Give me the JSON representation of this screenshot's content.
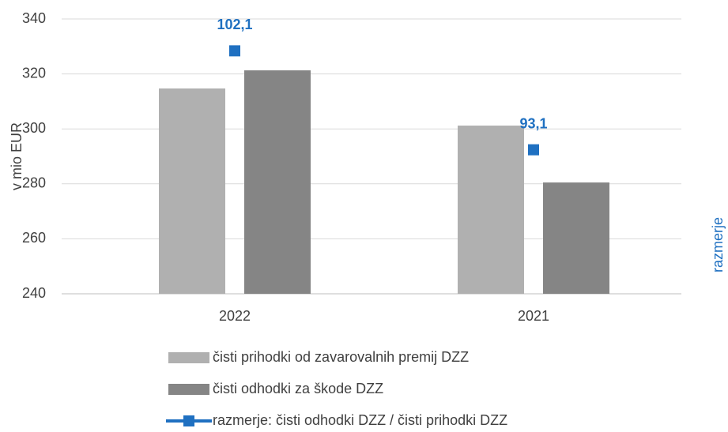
{
  "chart_data": {
    "type": "bar",
    "categories": [
      "2022",
      "2021"
    ],
    "series": [
      {
        "name": "čisti prihodki od zavarovalnih premij DZZ",
        "color": "#b0b0b0",
        "values": [
          314.7,
          301.2
        ]
      },
      {
        "name": "čisti odhodki za škode DZZ",
        "color": "#858585",
        "values": [
          321.3,
          280.5
        ]
      },
      {
        "name": "razmerje: čisti odhodki DZZ / čisti prihodki DZZ",
        "color": "#1f70c1",
        "values": [
          102.1,
          93.1
        ],
        "value_labels": [
          "102,1",
          "93,1"
        ],
        "axis": "y2",
        "type": "line"
      }
    ],
    "ylabel": "v mio EUR",
    "y2label": "razmerje",
    "ylim": [
      240,
      340
    ],
    "yticks": [
      240,
      260,
      280,
      300,
      320,
      340
    ],
    "y2lim": [
      80,
      105
    ],
    "grid": true,
    "legend": "bottom"
  }
}
